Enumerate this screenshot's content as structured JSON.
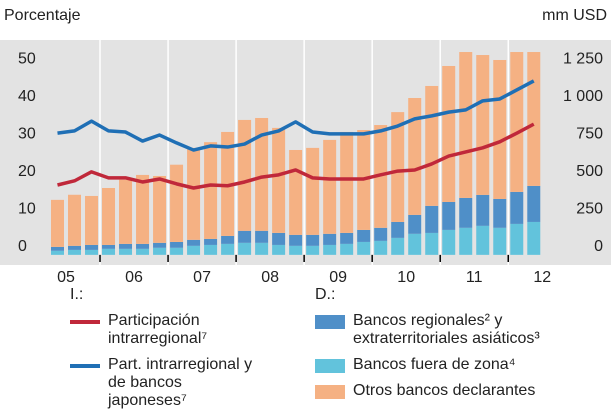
{
  "chart_data": {
    "type": "bar",
    "y_axis_label": "Porcentaje",
    "y2_axis_label": "mm USD",
    "legend_left_title": "I.:",
    "legend_right_title": "D.:",
    "x": [
      2005.375,
      2005.625,
      2005.875,
      2006.125,
      2006.375,
      2006.625,
      2006.875,
      2007.125,
      2007.375,
      2007.625,
      2007.875,
      2008.125,
      2008.375,
      2008.625,
      2008.875,
      2009.125,
      2009.375,
      2009.625,
      2009.875,
      2010.125,
      2010.375,
      2010.625,
      2010.875,
      2011.125,
      2011.375,
      2011.625,
      2011.875,
      2012.125,
      2012.375
    ],
    "xlim": [
      2004.53,
      2013.51
    ],
    "xticks": [
      {
        "value": 2005.5,
        "label": "05"
      },
      {
        "value": 2006.5,
        "label": "06"
      },
      {
        "value": 2007.5,
        "label": "07"
      },
      {
        "value": 2008.5,
        "label": "08"
      },
      {
        "value": 2009.5,
        "label": "09"
      },
      {
        "value": 2010.5,
        "label": "10"
      },
      {
        "value": 2011.5,
        "label": "11"
      },
      {
        "value": 2012.5,
        "label": "12"
      }
    ],
    "xminorticks": [
      2006,
      2007,
      2008,
      2009,
      2010,
      2011,
      2012
    ],
    "ylim": [
      -2.7,
      57.2
    ],
    "yticks": [
      0,
      10,
      20,
      30,
      40,
      50
    ],
    "y2lim": [
      -67.5,
      1430
    ],
    "y2ticks": [
      0,
      250,
      500,
      750,
      {
        "value": 1000,
        "label": "1 000"
      },
      {
        "value": 1250,
        "label": "1 250"
      }
    ],
    "series": [
      {
        "name": "Participación intrarregional⁷",
        "type": "line",
        "color": "#c0283a",
        "values": [
          18.6,
          19.7,
          22.1,
          20.5,
          20.5,
          19.4,
          20.2,
          18.9,
          17.8,
          18.6,
          18.4,
          19.4,
          20.7,
          21.3,
          22.6,
          20.5,
          20.2,
          20.2,
          20.2,
          21.3,
          22.3,
          22.6,
          24.2,
          26.3,
          27.4,
          28.5,
          30.1,
          32.4,
          34.8
        ]
      },
      {
        "name": "Part. intrarregional y de bancos japoneses⁷",
        "type": "line",
        "color": "#1f6fb5",
        "values": [
          32.4,
          33.0,
          35.6,
          33.0,
          32.7,
          30.3,
          31.9,
          29.8,
          27.9,
          29.0,
          28.7,
          29.5,
          31.9,
          33.0,
          35.4,
          32.7,
          32.2,
          32.2,
          32.2,
          33.0,
          34.3,
          36.2,
          37.0,
          38.0,
          38.6,
          41.0,
          41.5,
          43.9,
          46.3
        ]
      },
      {
        "name": "Bancos regionales² y extraterritoriales asiáticos³",
        "type": "bar",
        "axis": "y2",
        "color": "#4f8fc8",
        "values": [
          26,
          27,
          33,
          26,
          33,
          33,
          33,
          39,
          40,
          40,
          53,
          80,
          80,
          80,
          73,
          73,
          74,
          73,
          80,
          87,
          106,
          126,
          180,
          186,
          199,
          206,
          192,
          213,
          240
        ]
      },
      {
        "name": "Bancos fuera de zona⁴",
        "type": "bar",
        "axis": "y2",
        "color": "#62c3dc",
        "values": [
          27,
          33,
          33,
          40,
          40,
          40,
          47,
          47,
          60,
          66,
          73,
          80,
          80,
          66,
          60,
          60,
          66,
          73,
          86,
          93,
          113,
          140,
          146,
          166,
          180,
          193,
          180,
          206,
          219
        ]
      },
      {
        "name": "Otros bancos declarantes",
        "type": "bar",
        "axis": "y2",
        "color": "#f5b183",
        "values": [
          313,
          340,
          326,
          379,
          427,
          459,
          445,
          514,
          612,
          644,
          692,
          738,
          751,
          699,
          565,
          579,
          625,
          672,
          665,
          684,
          731,
          778,
          798,
          905,
          971,
          931,
          925,
          931,
          891
        ]
      }
    ]
  }
}
